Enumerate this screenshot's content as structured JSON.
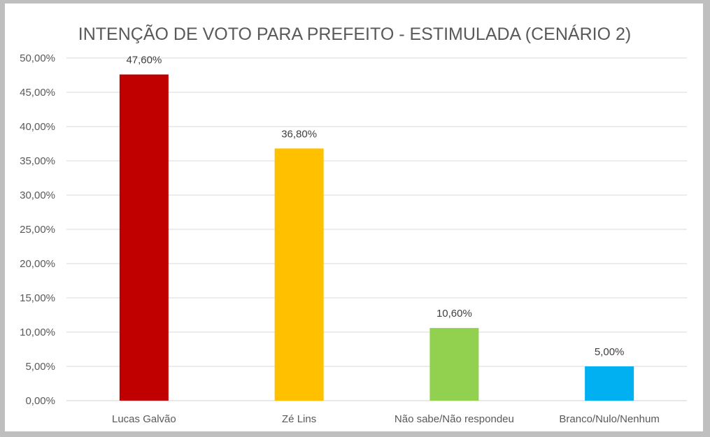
{
  "chart_data": {
    "type": "bar",
    "title": "INTENÇÃO DE VOTO PARA PREFEITO - ESTIMULADA (CENÁRIO 2)",
    "xlabel": "",
    "ylabel": "",
    "categories": [
      "Lucas Galvão",
      "Zé Lins",
      "Não sabe/Não respondeu",
      "Branco/Nulo/Nenhum"
    ],
    "values": [
      47.6,
      36.8,
      10.6,
      5.0
    ],
    "value_labels": [
      "47,60%",
      "36,80%",
      "10,60%",
      "5,00%"
    ],
    "colors": [
      "#C00000",
      "#FFC000",
      "#92D050",
      "#00B0F0"
    ],
    "ylim": [
      0,
      50
    ],
    "yticks": [
      0,
      5,
      10,
      15,
      20,
      25,
      30,
      35,
      40,
      45,
      50
    ],
    "ytick_labels": [
      "0,00%",
      "5,00%",
      "10,00%",
      "15,00%",
      "20,00%",
      "25,00%",
      "30,00%",
      "35,00%",
      "40,00%",
      "45,00%",
      "50,00%"
    ],
    "grid": true,
    "legend": "none"
  }
}
